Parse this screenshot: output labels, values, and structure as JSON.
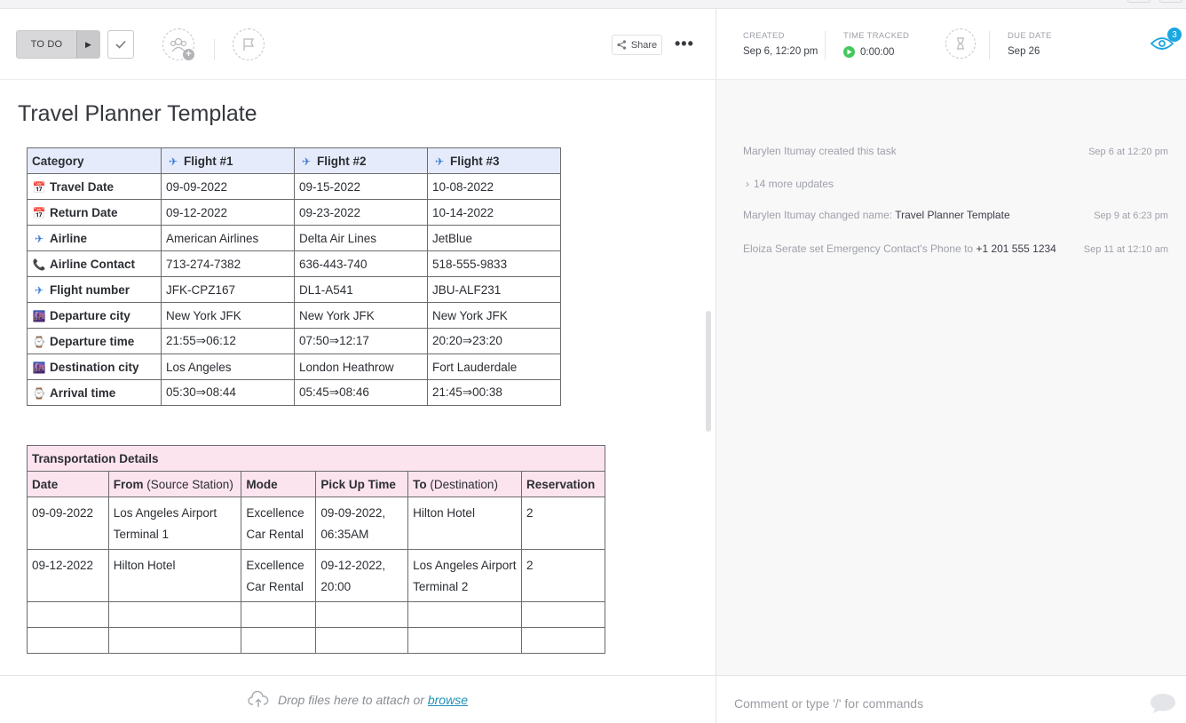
{
  "toolbar": {
    "status_label": "TO DO",
    "share_label": "Share"
  },
  "doc": {
    "title": "Travel Planner Template",
    "flights": {
      "header": [
        {
          "icon": "✈",
          "label": "Category"
        },
        {
          "icon": "✈",
          "label": "Flight #1"
        },
        {
          "icon": "✈",
          "label": "Flight #2"
        },
        {
          "icon": "✈",
          "label": "Flight #3"
        }
      ],
      "rows": [
        {
          "icon": "📅",
          "label": "Travel Date",
          "values": [
            "09-09-2022",
            "09-15-2022",
            "10-08-2022"
          ]
        },
        {
          "icon": "📅",
          "label": "Return Date",
          "values": [
            "09-12-2022",
            "09-23-2022",
            "10-14-2022"
          ]
        },
        {
          "icon": "✈",
          "label": "Airline",
          "values": [
            "American Airlines",
            "Delta Air Lines",
            "JetBlue"
          ]
        },
        {
          "icon": "📞",
          "label": "Airline Contact",
          "values": [
            "713-274-7382",
            "636-443-740",
            "518-555-9833"
          ]
        },
        {
          "icon": "✈",
          "label": "Flight number",
          "values": [
            "JFK-CPZ167",
            "DL1-A541",
            "JBU-ALF231"
          ]
        },
        {
          "icon": "🌆",
          "label": "Departure city",
          "values": [
            "New York JFK",
            "New York JFK",
            "New York JFK"
          ]
        },
        {
          "icon": "⌚",
          "label": "Departure time",
          "values": [
            "21:55⇒06:12",
            "07:50⇒12:17",
            "20:20⇒23:20"
          ]
        },
        {
          "icon": "🌆",
          "label": "Destination city",
          "values": [
            "Los Angeles",
            "London Heathrow",
            "Fort Lauderdale"
          ]
        },
        {
          "icon": "⌚",
          "label": "Arrival time",
          "values": [
            "05:30⇒08:44",
            "05:45⇒08:46",
            "21:45⇒00:38"
          ]
        }
      ]
    },
    "transport": {
      "title": "Transportation Details",
      "headers": {
        "date": "Date",
        "from_bold": "From",
        "from_rest": " (Source Station)",
        "mode": "Mode",
        "pickup": "Pick Up Time",
        "to_bold": "To",
        "to_rest": " (Destination)",
        "reservation": "Reservation"
      },
      "rows": [
        {
          "date": "09-09-2022",
          "from": "Los Angeles Airport Terminal 1",
          "mode": "Excellence Car Rental",
          "pickup": "09-09-2022, 06:35AM",
          "to": "Hilton Hotel",
          "reservation": "2"
        },
        {
          "date": "09-12-2022",
          "from": "Hilton Hotel",
          "mode": "Excellence Car Rental",
          "pickup": "09-12-2022, 20:00",
          "to": "Los Angeles Airport Terminal 2",
          "reservation": "2"
        }
      ]
    }
  },
  "dropzone": {
    "text": "Drop files here to attach or ",
    "link": "browse"
  },
  "sidebar": {
    "created_label": "CREATED",
    "created_value": "Sep 6, 12:20 pm",
    "time_label": "TIME TRACKED",
    "time_value": "0:00:00",
    "due_label": "DUE DATE",
    "due_value": "Sep 26",
    "watchers_count": "3",
    "activity": [
      {
        "text": "Marylen Itumay created this task",
        "highlight": "",
        "time": "Sep 6 at 12:20 pm"
      },
      {
        "text": "14 more updates",
        "highlight": "",
        "time": ""
      },
      {
        "text": "Marylen Itumay changed name: ",
        "highlight": "Travel Planner Template",
        "time": "Sep 9 at 6:23 pm"
      },
      {
        "text": "Eloiza Serate set Emergency Contact's Phone to ",
        "highlight": "+1 201 555 1234",
        "time": "Sep 11 at 12:10 am"
      }
    ],
    "comment_placeholder": "Comment or type '/' for commands"
  },
  "colors": {
    "flight_header_bg": "#e6ebfb",
    "transport_header_bg": "#fce4ef",
    "accent": "#1aa6e0",
    "play": "#43c85e"
  }
}
